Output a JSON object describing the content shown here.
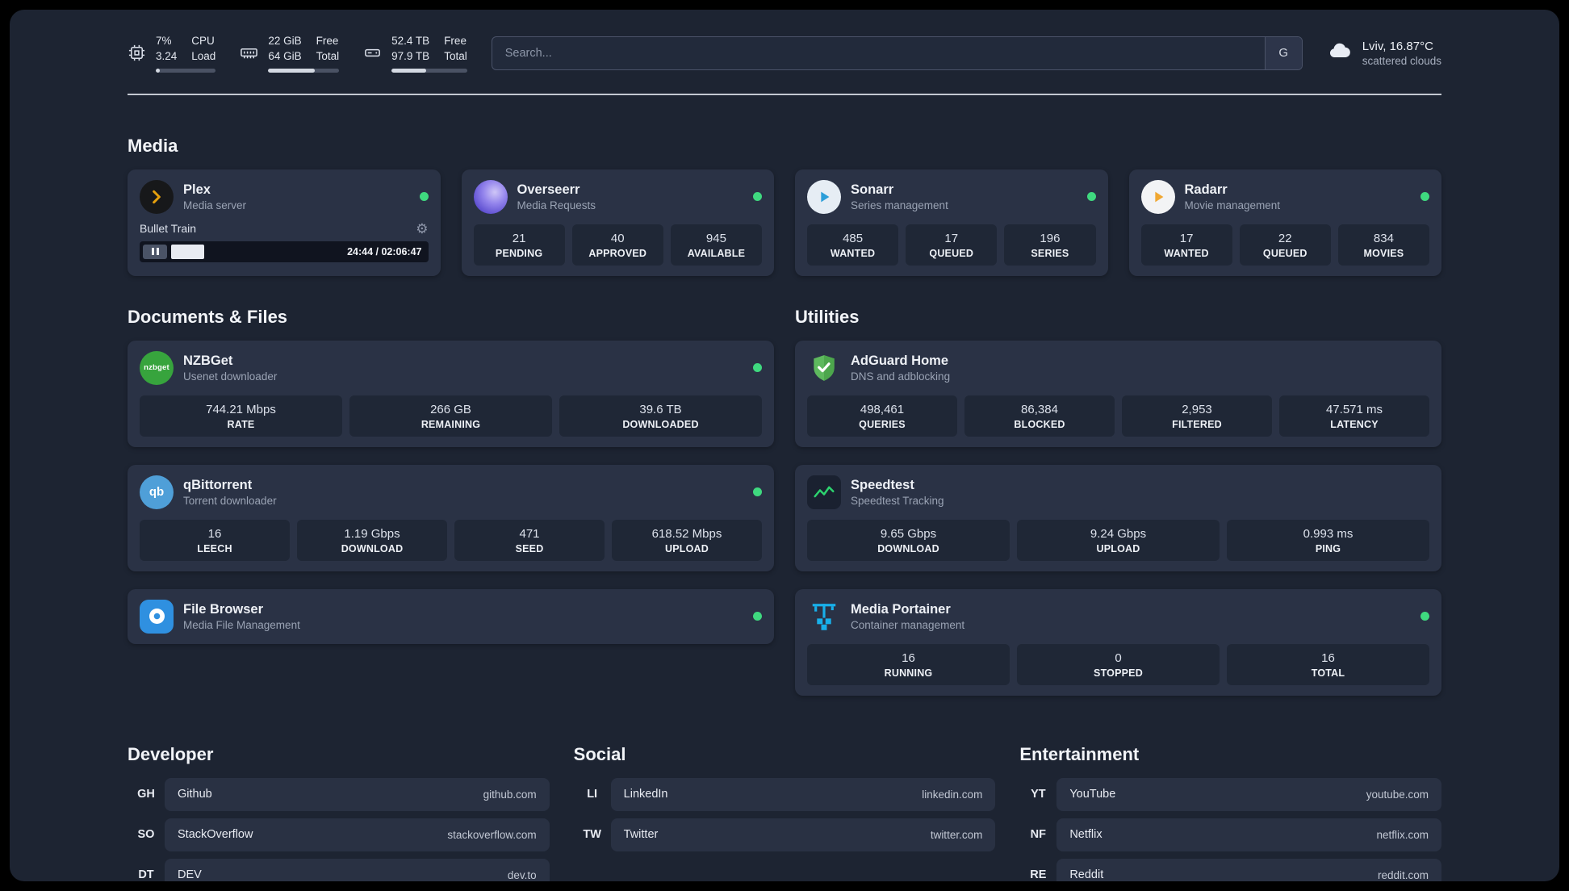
{
  "colors": {
    "status_online": "#3fd97f",
    "page_background": "#1d2432",
    "card_background": "#2a3245"
  },
  "topbar": {
    "cpu": {
      "value": "7%",
      "load": "3.24",
      "label_top": "CPU",
      "label_bottom": "Load",
      "bar_percent": 7
    },
    "memory": {
      "free": "22 GiB",
      "total": "64 GiB",
      "label_top": "Free",
      "label_bottom": "Total",
      "bar_percent": 66
    },
    "disk": {
      "free": "52.4 TB",
      "total": "97.9 TB",
      "label_top": "Free",
      "label_bottom": "Total",
      "bar_percent": 46
    },
    "search": {
      "placeholder": "Search...",
      "engine_button": "G"
    },
    "weather": {
      "location": "Lviv, 16.87°C",
      "condition": "scattered clouds"
    }
  },
  "sections": {
    "media": {
      "title": "Media",
      "plex": {
        "name": "Plex",
        "subtitle": "Media server",
        "now_playing": "Bullet Train",
        "elapsed_total": "24:44 / 02:06:47",
        "progress_percent": 19.5
      },
      "apps": [
        {
          "name": "Overseerr",
          "subtitle": "Media Requests",
          "stats": [
            {
              "value": "21",
              "label": "PENDING"
            },
            {
              "value": "40",
              "label": "APPROVED"
            },
            {
              "value": "945",
              "label": "AVAILABLE"
            }
          ]
        },
        {
          "name": "Sonarr",
          "subtitle": "Series management",
          "stats": [
            {
              "value": "485",
              "label": "WANTED"
            },
            {
              "value": "17",
              "label": "QUEUED"
            },
            {
              "value": "196",
              "label": "SERIES"
            }
          ]
        },
        {
          "name": "Radarr",
          "subtitle": "Movie management",
          "stats": [
            {
              "value": "17",
              "label": "WANTED"
            },
            {
              "value": "22",
              "label": "QUEUED"
            },
            {
              "value": "834",
              "label": "MOVIES"
            }
          ]
        }
      ]
    },
    "documents": {
      "title": "Documents & Files",
      "apps": [
        {
          "name": "NZBGet",
          "subtitle": "Usenet downloader",
          "icon_text": "nzbget",
          "stats": [
            {
              "value": "744.21 Mbps",
              "label": "RATE"
            },
            {
              "value": "266 GB",
              "label": "REMAINING"
            },
            {
              "value": "39.6 TB",
              "label": "DOWNLOADED"
            }
          ]
        },
        {
          "name": "qBittorrent",
          "subtitle": "Torrent downloader",
          "icon_text": "qb",
          "stats": [
            {
              "value": "16",
              "label": "LEECH"
            },
            {
              "value": "1.19 Gbps",
              "label": "DOWNLOAD"
            },
            {
              "value": "471",
              "label": "SEED"
            },
            {
              "value": "618.52 Mbps",
              "label": "UPLOAD"
            }
          ]
        },
        {
          "name": "File Browser",
          "subtitle": "Media File Management",
          "stats": []
        }
      ]
    },
    "utilities": {
      "title": "Utilities",
      "apps": [
        {
          "name": "AdGuard Home",
          "subtitle": "DNS and adblocking",
          "stats": [
            {
              "value": "498,461",
              "label": "QUERIES"
            },
            {
              "value": "86,384",
              "label": "BLOCKED"
            },
            {
              "value": "2,953",
              "label": "FILTERED"
            },
            {
              "value": "47.571 ms",
              "label": "LATENCY"
            }
          ]
        },
        {
          "name": "Speedtest",
          "subtitle": "Speedtest Tracking",
          "stats": [
            {
              "value": "9.65 Gbps",
              "label": "DOWNLOAD"
            },
            {
              "value": "9.24 Gbps",
              "label": "UPLOAD"
            },
            {
              "value": "0.993 ms",
              "label": "PING"
            }
          ]
        },
        {
          "name": "Media Portainer",
          "subtitle": "Container management",
          "stats": [
            {
              "value": "16",
              "label": "RUNNING"
            },
            {
              "value": "0",
              "label": "STOPPED"
            },
            {
              "value": "16",
              "label": "TOTAL"
            }
          ]
        }
      ]
    }
  },
  "bookmarks": {
    "developer": {
      "title": "Developer",
      "items": [
        {
          "abbr": "GH",
          "name": "Github",
          "url": "github.com"
        },
        {
          "abbr": "SO",
          "name": "StackOverflow",
          "url": "stackoverflow.com"
        },
        {
          "abbr": "DT",
          "name": "DEV",
          "url": "dev.to"
        }
      ]
    },
    "social": {
      "title": "Social",
      "items": [
        {
          "abbr": "LI",
          "name": "LinkedIn",
          "url": "linkedin.com"
        },
        {
          "abbr": "TW",
          "name": "Twitter",
          "url": "twitter.com"
        }
      ]
    },
    "entertainment": {
      "title": "Entertainment",
      "items": [
        {
          "abbr": "YT",
          "name": "YouTube",
          "url": "youtube.com"
        },
        {
          "abbr": "NF",
          "name": "Netflix",
          "url": "netflix.com"
        },
        {
          "abbr": "RE",
          "name": "Reddit",
          "url": "reddit.com"
        }
      ]
    }
  }
}
